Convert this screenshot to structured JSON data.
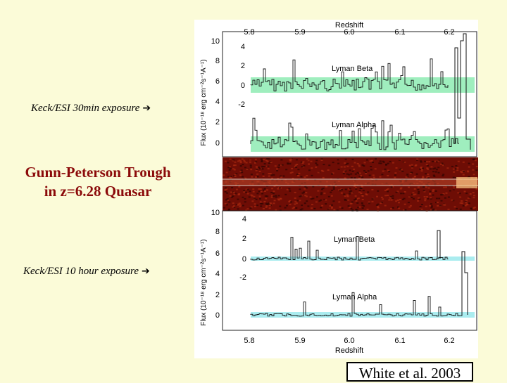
{
  "captions": {
    "keck_30min": "Keck/ESI 30min exposure",
    "keck_10hour": "Keck/ESI 10 hour exposure",
    "arrow_glyph": "➔"
  },
  "title": {
    "line1": "Gunn-Peterson Trough",
    "line2": "in z=6.28 Quasar"
  },
  "citation": "White et al. 2003",
  "figure": {
    "redshift_label": "Redshift",
    "redshift_ticks": [
      "5.8",
      "5.9",
      "6.0",
      "6.1",
      "6.2"
    ],
    "flux_label_top": "Flux (10⁻¹⁸ erg cm⁻²s⁻¹A⁻¹)",
    "flux_label_bottom": "Flux (10⁻¹⁸ erg cm⁻²s⁻¹A⁻¹)",
    "left_ticks": [
      "10",
      "8",
      "6",
      "4",
      "2",
      "0"
    ],
    "inner_ticks_top": [
      "4",
      "2",
      "0",
      "-2"
    ],
    "inner_ticks_bottom": [
      "4",
      "2",
      "0",
      "-2"
    ],
    "lyman_beta": "Lyman Beta",
    "lyman_alpha": "Lyman Alpha",
    "colors": {
      "noise_top": "#7fe8a8",
      "noise_bottom": "#8ee6ea",
      "spectrum_2d": "#6e0d05",
      "page_bg": "#fbfbd8",
      "title_color": "#8b0a0a"
    }
  }
}
